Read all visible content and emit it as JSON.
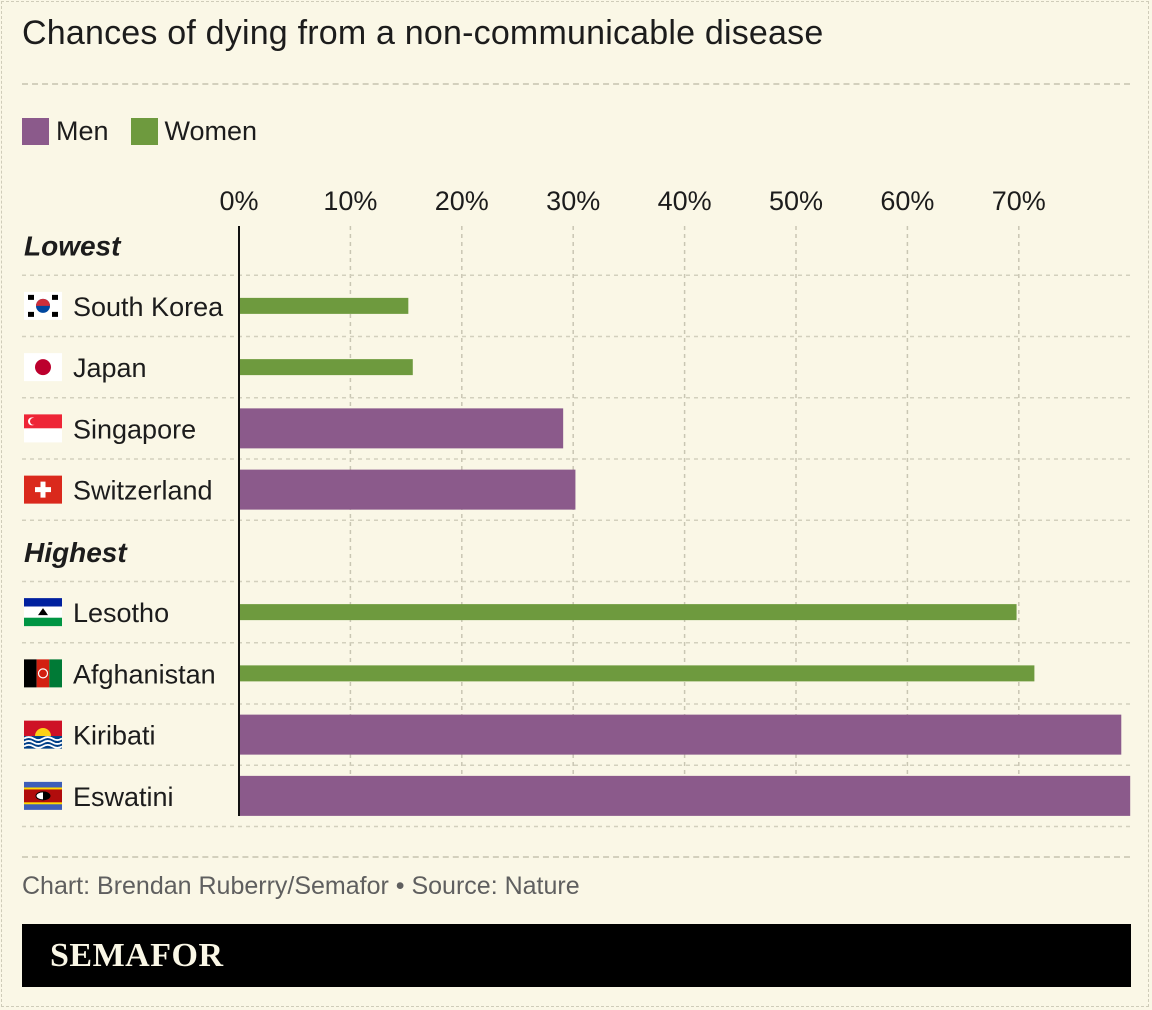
{
  "title": "Chances of dying from a non-communicable disease",
  "legend": [
    {
      "label": "Men",
      "color": "#8b5a8b"
    },
    {
      "label": "Women",
      "color": "#6e9a3e"
    }
  ],
  "chart_data": {
    "type": "bar",
    "orientation": "horizontal",
    "title": "Chances of dying from a non-communicable disease",
    "x_ticks": [
      "0%",
      "10%",
      "20%",
      "30%",
      "40%",
      "50%",
      "60%",
      "70%"
    ],
    "xlim": [
      0,
      80
    ],
    "grid": true,
    "legend_position": "top-left",
    "groups": [
      {
        "label": "Lowest",
        "rows": [
          {
            "country": "South Korea",
            "flag": "south-korea-flag-icon",
            "series": "Women",
            "value": 15.2
          },
          {
            "country": "Japan",
            "flag": "japan-flag-icon",
            "series": "Women",
            "value": 15.6
          },
          {
            "country": "Singapore",
            "flag": "singapore-flag-icon",
            "series": "Men",
            "value": 29.1
          },
          {
            "country": "Switzerland",
            "flag": "switzerland-flag-icon",
            "series": "Men",
            "value": 30.2
          }
        ]
      },
      {
        "label": "Highest",
        "rows": [
          {
            "country": "Lesotho",
            "flag": "lesotho-flag-icon",
            "series": "Women",
            "value": 69.8
          },
          {
            "country": "Afghanistan",
            "flag": "afghanistan-flag-icon",
            "series": "Women",
            "value": 71.4
          },
          {
            "country": "Kiribati",
            "flag": "kiribati-flag-icon",
            "series": "Men",
            "value": 79.2
          },
          {
            "country": "Eswatini",
            "flag": "eswatini-flag-icon",
            "series": "Men",
            "value": 80.0
          }
        ]
      }
    ]
  },
  "footer": {
    "credit": "Chart: Brendan Ruberry/Semafor • Source: Nature",
    "brand": "SEMAFOR"
  }
}
